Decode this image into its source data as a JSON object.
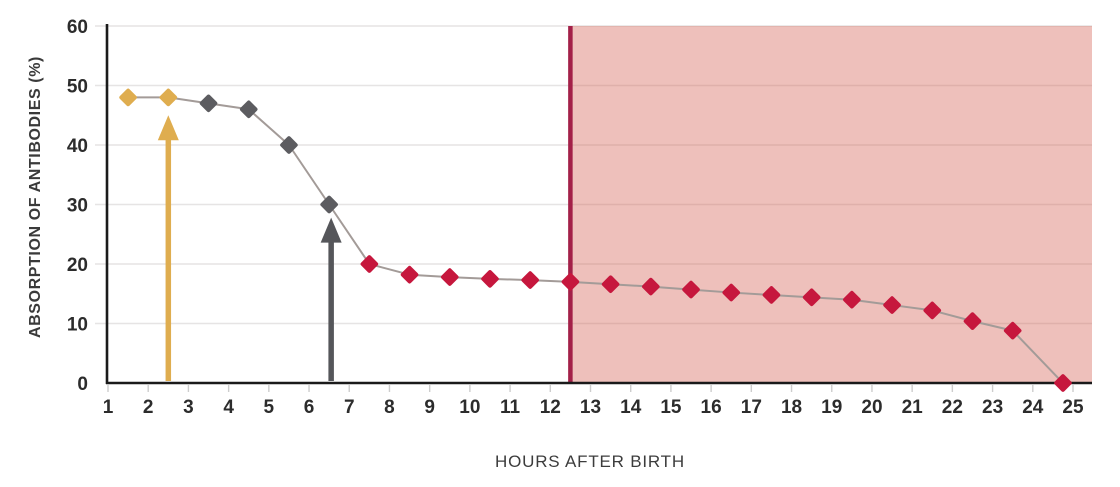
{
  "chart_data": {
    "type": "line",
    "title": "",
    "xlabel": "HOURS AFTER BIRTH",
    "ylabel": "ABSORPTION OF ANTIBODIES (%)",
    "xlim": [
      1,
      25.5
    ],
    "ylim": [
      0,
      60
    ],
    "x_ticks": [
      1,
      2,
      3,
      4,
      5,
      6,
      7,
      8,
      9,
      10,
      11,
      12,
      13,
      14,
      15,
      16,
      17,
      18,
      19,
      20,
      21,
      22,
      23,
      24,
      25
    ],
    "y_ticks": [
      0,
      10,
      20,
      30,
      40,
      50,
      60
    ],
    "grid": "horizontal-only",
    "legend": "none",
    "marker_shape": "diamond",
    "marker_colors": {
      "gold": "#DFAD4F",
      "gray": "#5C5C60",
      "red": "#C6173D"
    },
    "series": [
      {
        "name": "antibody-absorption",
        "points": [
          {
            "x": 1.5,
            "y": 48,
            "color": "gold"
          },
          {
            "x": 2.5,
            "y": 48,
            "color": "gold"
          },
          {
            "x": 3.5,
            "y": 47,
            "color": "gray"
          },
          {
            "x": 4.5,
            "y": 46,
            "color": "gray"
          },
          {
            "x": 5.5,
            "y": 40,
            "color": "gray"
          },
          {
            "x": 6.5,
            "y": 30,
            "color": "gray"
          },
          {
            "x": 7.5,
            "y": 20,
            "color": "red"
          },
          {
            "x": 8.5,
            "y": 18.2,
            "color": "red"
          },
          {
            "x": 9.5,
            "y": 17.8,
            "color": "red"
          },
          {
            "x": 10.5,
            "y": 17.5,
            "color": "red"
          },
          {
            "x": 11.5,
            "y": 17.3,
            "color": "red"
          },
          {
            "x": 12.5,
            "y": 17,
            "color": "red"
          },
          {
            "x": 13.5,
            "y": 16.6,
            "color": "red"
          },
          {
            "x": 14.5,
            "y": 16.2,
            "color": "red"
          },
          {
            "x": 15.5,
            "y": 15.7,
            "color": "red"
          },
          {
            "x": 16.5,
            "y": 15.2,
            "color": "red"
          },
          {
            "x": 17.5,
            "y": 14.8,
            "color": "red"
          },
          {
            "x": 18.5,
            "y": 14.4,
            "color": "red"
          },
          {
            "x": 19.5,
            "y": 14,
            "color": "red"
          },
          {
            "x": 20.5,
            "y": 13.1,
            "color": "red"
          },
          {
            "x": 21.5,
            "y": 12.2,
            "color": "red"
          },
          {
            "x": 22.5,
            "y": 10.4,
            "color": "red"
          },
          {
            "x": 23.5,
            "y": 8.8,
            "color": "red"
          },
          {
            "x": 24.75,
            "y": 0,
            "color": "red"
          }
        ]
      }
    ],
    "annotations": {
      "vline_x": 12.5,
      "shaded_region": {
        "x_start": 12.5,
        "x_end": 25.5
      },
      "arrows": [
        {
          "x": 2.5,
          "tip_y": 45,
          "color": "#DFAD4F"
        },
        {
          "x": 6.55,
          "tip_y": 27.8,
          "color": "#55565A"
        }
      ]
    },
    "colors": {
      "series_line": "#A39B98",
      "vline": "#A32048",
      "shade": "rgba(213,97,86,0.40)",
      "axis": "#1a1a1a",
      "grid": "#E6E4E4",
      "tick": "#CDCDCD"
    }
  }
}
